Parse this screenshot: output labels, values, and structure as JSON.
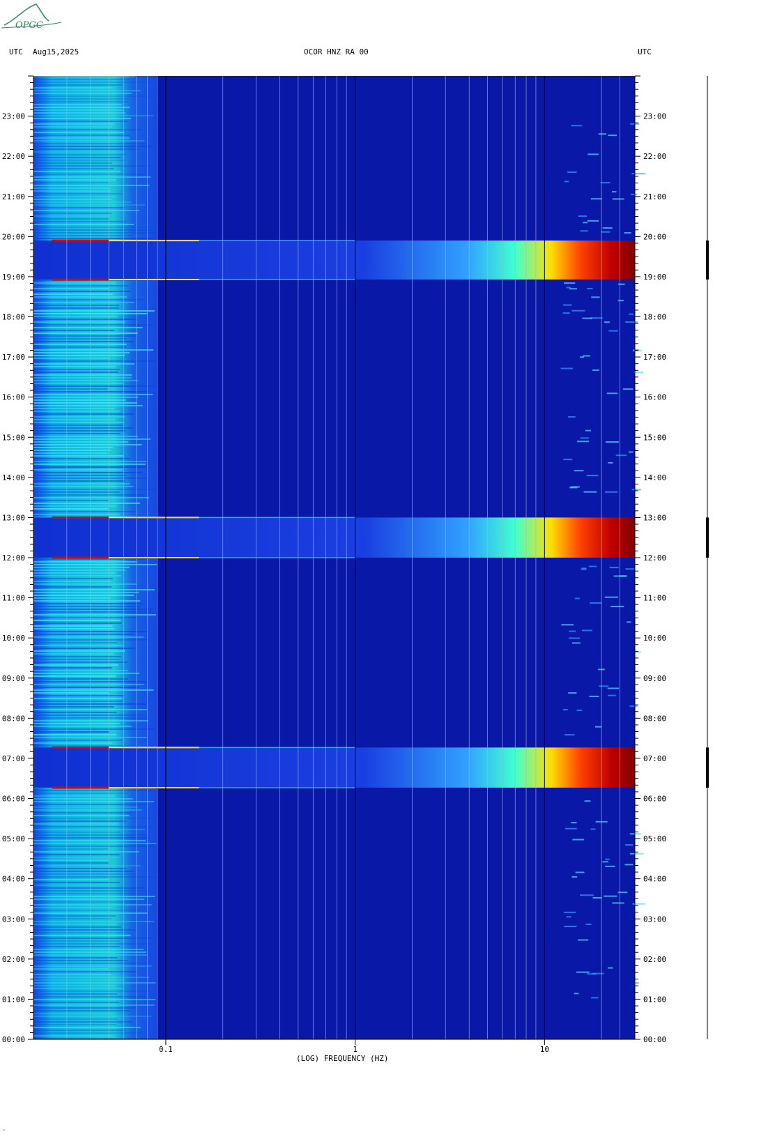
{
  "header": {
    "left_tz": "UTC",
    "date": "Aug15,2025",
    "station": "OCOR HNZ RA 00",
    "right_tz": "UTC"
  },
  "logo": {
    "text": "OPGC",
    "color": "#2e8b57"
  },
  "footer_mark": "ʼ",
  "chart_data": {
    "type": "heatmap",
    "title": "OCOR HNZ RA 00",
    "xlabel": "(LOG) FREQUENCY (HZ)",
    "ylabel": "UTC",
    "x_scale": "log",
    "xlim": [
      0.02,
      30
    ],
    "x_tick_labels": [
      "0.1",
      "1",
      "10"
    ],
    "x_major_ticks": [
      0.1,
      1,
      10
    ],
    "x_minor_gridlines": [
      0.03,
      0.04,
      0.05,
      0.06,
      0.07,
      0.08,
      0.09,
      0.2,
      0.3,
      0.4,
      0.5,
      0.6,
      0.7,
      0.8,
      0.9,
      2,
      3,
      4,
      5,
      6,
      7,
      8,
      9,
      20,
      25
    ],
    "y_hours": [
      "00:00",
      "01:00",
      "02:00",
      "03:00",
      "04:00",
      "05:00",
      "06:00",
      "07:00",
      "08:00",
      "09:00",
      "10:00",
      "11:00",
      "12:00",
      "13:00",
      "14:00",
      "15:00",
      "16:00",
      "17:00",
      "18:00",
      "19:00",
      "20:00",
      "21:00",
      "22:00",
      "23:00"
    ],
    "ylim_hours": [
      0,
      24
    ],
    "colormap": [
      "#00007f",
      "#0000cc",
      "#0040ff",
      "#00c0ff",
      "#40ffc0",
      "#c0ff40",
      "#ffc000",
      "#ff4000",
      "#800000"
    ],
    "background_color": "#0a18a8",
    "low_freq_band": {
      "freq_range": [
        0.02,
        0.07
      ],
      "level": "cyan"
    },
    "events": [
      {
        "start_hour": 6.27,
        "end_hour": 7.27,
        "peak_freq_range": [
          10,
          30
        ]
      },
      {
        "start_hour": 12.0,
        "end_hour": 13.0,
        "peak_freq_range": [
          10,
          30
        ]
      },
      {
        "start_hour": 18.93,
        "end_hour": 19.9,
        "peak_freq_range": [
          10,
          30
        ]
      }
    ],
    "grid": true
  }
}
